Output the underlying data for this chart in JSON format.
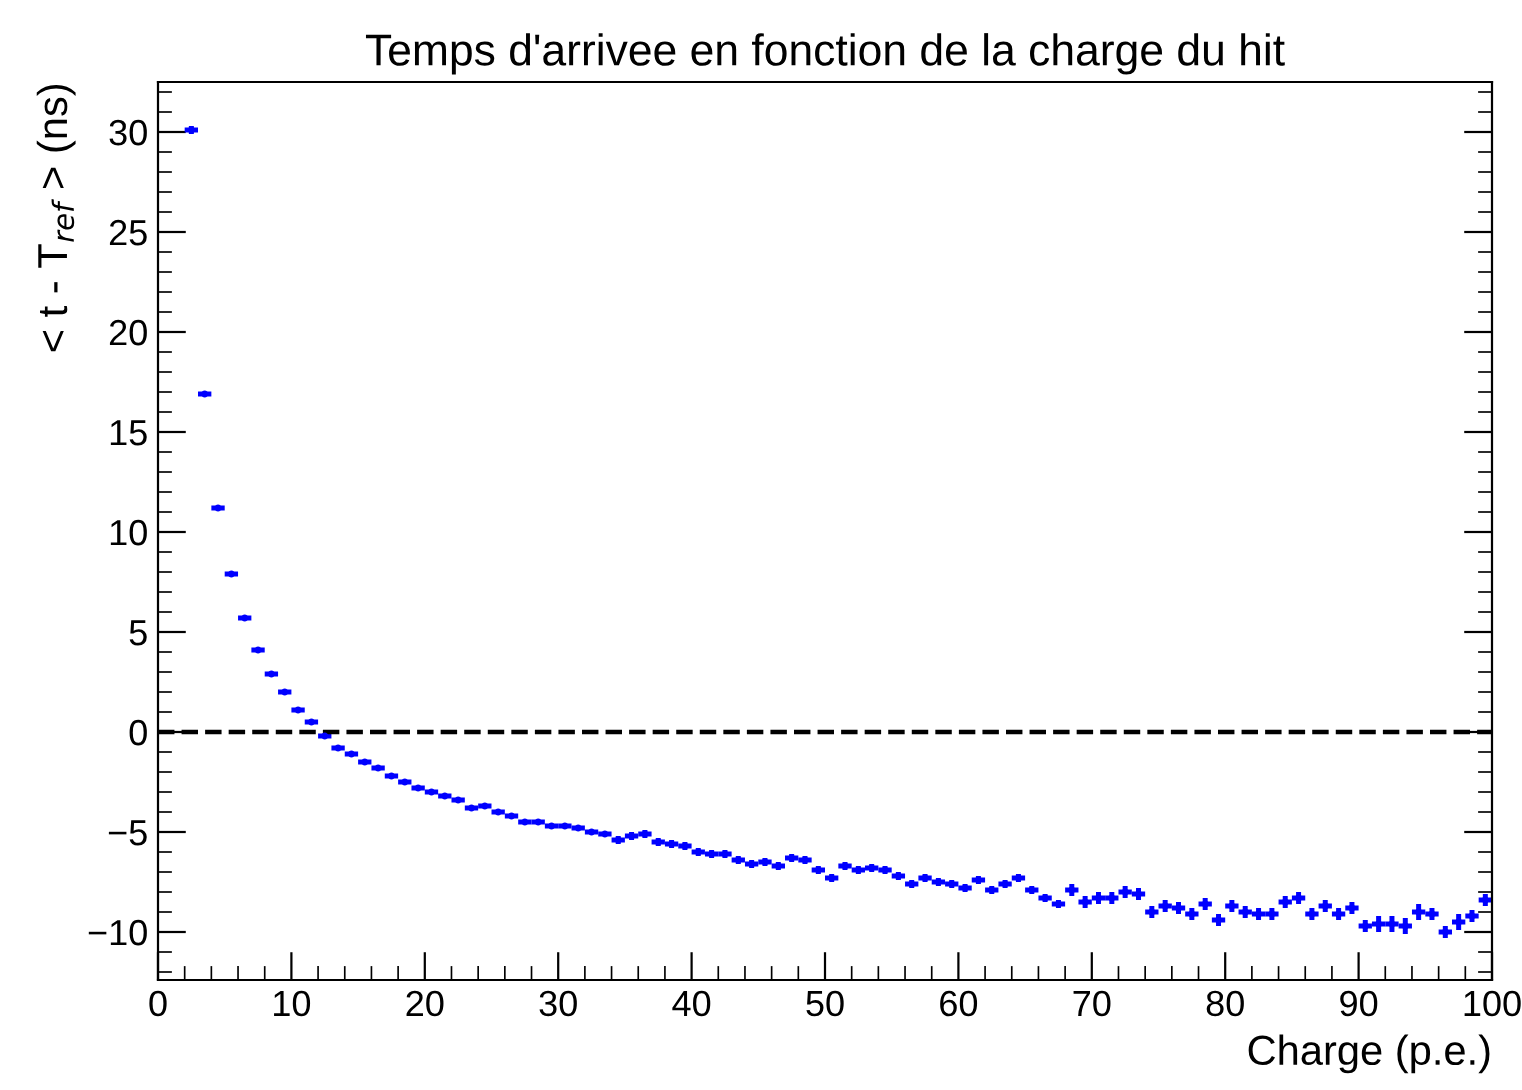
{
  "chart_data": {
    "type": "scatter",
    "title": "Temps d'arrivee en fonction de la charge du hit",
    "xlabel": "Charge (p.e.)",
    "ylabel": "< t - T$_{ref}$ > (ns)",
    "x": [
      2.5,
      3.5,
      4.5,
      5.5,
      6.5,
      7.5,
      8.5,
      9.5,
      10.5,
      11.5,
      12.5,
      13.5,
      14.5,
      15.5,
      16.5,
      17.5,
      18.5,
      19.5,
      20.5,
      21.5,
      22.5,
      23.5,
      24.5,
      25.5,
      26.5,
      27.5,
      28.5,
      29.5,
      30.5,
      31.5,
      32.5,
      33.5,
      34.5,
      35.5,
      36.5,
      37.5,
      38.5,
      39.5,
      40.5,
      41.5,
      42.5,
      43.5,
      44.5,
      45.5,
      46.5,
      47.5,
      48.5,
      49.5,
      50.5,
      51.5,
      52.5,
      53.5,
      54.5,
      55.5,
      56.5,
      57.5,
      58.5,
      59.5,
      60.5,
      61.5,
      62.5,
      63.5,
      64.5,
      65.5,
      66.5,
      67.5,
      68.5,
      69.5,
      70.5,
      71.5,
      72.5,
      73.5,
      74.5,
      75.5,
      76.5,
      77.5,
      78.5,
      79.5,
      80.5,
      81.5,
      82.5,
      83.5,
      84.5,
      85.5,
      86.5,
      87.5,
      88.5,
      89.5,
      90.5,
      91.5,
      92.5,
      93.5,
      94.5,
      95.5,
      96.5,
      97.5,
      98.5,
      99.5
    ],
    "series": [
      {
        "color": "#0000ff",
        "values": [
          30.1,
          16.9,
          11.2,
          7.9,
          5.7,
          4.1,
          2.9,
          2.0,
          1.1,
          0.5,
          -0.2,
          -0.8,
          -1.1,
          -1.5,
          -1.8,
          -2.2,
          -2.5,
          -2.8,
          -3.0,
          -3.2,
          -3.4,
          -3.8,
          -3.7,
          -4.0,
          -4.2,
          -4.5,
          -4.5,
          -4.7,
          -4.7,
          -4.8,
          -5.0,
          -5.1,
          -5.4,
          -5.2,
          -5.1,
          -5.5,
          -5.6,
          -5.7,
          -6.0,
          -6.1,
          -6.1,
          -6.4,
          -6.6,
          -6.5,
          -6.7,
          -6.3,
          -6.4,
          -6.9,
          -7.3,
          -6.7,
          -6.9,
          -6.8,
          -6.9,
          -7.2,
          -7.6,
          -7.3,
          -7.5,
          -7.6,
          -7.8,
          -7.4,
          -7.9,
          -7.6,
          -7.3,
          -7.9,
          -8.3,
          -8.6,
          -7.9,
          -8.5,
          -8.3,
          -8.3,
          -8.0,
          -8.1,
          -9.0,
          -8.7,
          -8.8,
          -9.1,
          -8.6,
          -9.4,
          -8.7,
          -9.0,
          -9.1,
          -9.1,
          -8.5,
          -8.3,
          -9.1,
          -8.7,
          -9.1,
          -8.8,
          -9.7,
          -9.6,
          -9.6,
          -9.7,
          -9.0,
          -9.1,
          -10.0,
          -9.5,
          -9.2,
          -8.4
        ],
        "xerrors": [
          0.5,
          0.5,
          0.5,
          0.5,
          0.5,
          0.5,
          0.5,
          0.5,
          0.5,
          0.5,
          0.5,
          0.5,
          0.5,
          0.5,
          0.5,
          0.5,
          0.5,
          0.5,
          0.5,
          0.5,
          0.5,
          0.5,
          0.5,
          0.5,
          0.5,
          0.5,
          0.5,
          0.5,
          0.5,
          0.5,
          0.5,
          0.5,
          0.5,
          0.5,
          0.5,
          0.5,
          0.5,
          0.5,
          0.5,
          0.5,
          0.5,
          0.5,
          0.5,
          0.5,
          0.5,
          0.5,
          0.5,
          0.5,
          0.5,
          0.5,
          0.5,
          0.5,
          0.5,
          0.5,
          0.5,
          0.5,
          0.5,
          0.5,
          0.5,
          0.5,
          0.5,
          0.5,
          0.5,
          0.5,
          0.5,
          0.5,
          0.5,
          0.5,
          0.5,
          0.5,
          0.5,
          0.5,
          0.5,
          0.5,
          0.5,
          0.5,
          0.5,
          0.5,
          0.5,
          0.5,
          0.5,
          0.5,
          0.5,
          0.5,
          0.5,
          0.5,
          0.5,
          0.5,
          0.5,
          0.5,
          0.5,
          0.5,
          0.5,
          0.5,
          0.5,
          0.5,
          0.5,
          0.5
        ],
        "errors": [
          0.2,
          0.1,
          0.1,
          0.1,
          0.1,
          0.1,
          0.1,
          0.1,
          0.1,
          0.1,
          0.1,
          0.1,
          0.1,
          0.1,
          0.1,
          0.1,
          0.1,
          0.1,
          0.1,
          0.1,
          0.1,
          0.1,
          0.1,
          0.1,
          0.1,
          0.1,
          0.1,
          0.1,
          0.1,
          0.1,
          0.1,
          0.1,
          0.2,
          0.2,
          0.2,
          0.2,
          0.2,
          0.2,
          0.2,
          0.2,
          0.2,
          0.2,
          0.2,
          0.2,
          0.2,
          0.2,
          0.2,
          0.2,
          0.2,
          0.2,
          0.2,
          0.2,
          0.2,
          0.2,
          0.2,
          0.2,
          0.2,
          0.2,
          0.2,
          0.2,
          0.2,
          0.2,
          0.2,
          0.2,
          0.2,
          0.2,
          0.3,
          0.3,
          0.3,
          0.3,
          0.3,
          0.3,
          0.3,
          0.3,
          0.3,
          0.3,
          0.3,
          0.3,
          0.3,
          0.3,
          0.3,
          0.3,
          0.3,
          0.3,
          0.3,
          0.3,
          0.3,
          0.3,
          0.3,
          0.4,
          0.4,
          0.4,
          0.4,
          0.3,
          0.3,
          0.4,
          0.3,
          0.3
        ]
      }
    ],
    "xlim": [
      0,
      100
    ],
    "ylim": [
      -12.4,
      32.5
    ],
    "xticks": [
      0,
      10,
      20,
      30,
      40,
      50,
      60,
      70,
      80,
      90,
      100
    ],
    "yticks": [
      -10,
      -5,
      0,
      5,
      10,
      15,
      20,
      25,
      30
    ],
    "ref_lines": [
      {
        "axis": "y",
        "value": 0,
        "color": "#000000",
        "line_style": "dashed"
      }
    ],
    "grid": false,
    "legend": false
  }
}
